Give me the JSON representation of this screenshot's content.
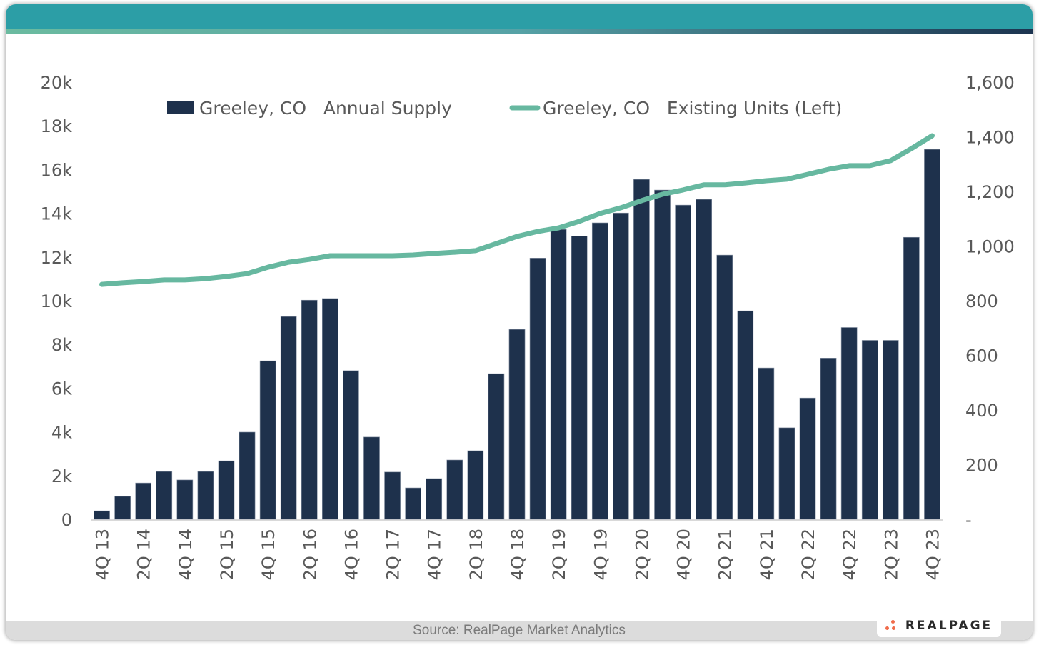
{
  "footer": {
    "source": "Source: RealPage Market Analytics",
    "logo_text": "REALPAGE"
  },
  "colors": {
    "header": "#2c9ea6",
    "bar": "#1e314c",
    "line": "#67b8a0",
    "text": "#595959"
  },
  "chart_data": {
    "type": "bar",
    "title": "",
    "categories": [
      "4Q 13",
      "1Q 14",
      "2Q 14",
      "3Q 14",
      "4Q 14",
      "1Q 15",
      "2Q 15",
      "3Q 15",
      "4Q 15",
      "1Q 16",
      "2Q 16",
      "3Q 16",
      "4Q 16",
      "1Q 17",
      "2Q 17",
      "3Q 17",
      "4Q 17",
      "1Q 18",
      "2Q 18",
      "3Q 18",
      "4Q 18",
      "1Q 19",
      "2Q 19",
      "3Q 19",
      "4Q 19",
      "1Q 20",
      "2Q 20",
      "3Q 20",
      "4Q 20",
      "1Q 21",
      "2Q 21",
      "3Q 21",
      "4Q 21",
      "1Q 22",
      "2Q 22",
      "3Q 22",
      "4Q 22",
      "1Q 23",
      "2Q 23",
      "3Q 23",
      "4Q 23"
    ],
    "tick_labels": [
      "4Q 13",
      "2Q 14",
      "4Q 14",
      "2Q 15",
      "4Q 15",
      "2Q 16",
      "4Q 16",
      "2Q 17",
      "4Q 17",
      "2Q 18",
      "4Q 18",
      "2Q 19",
      "4Q 19",
      "2Q 20",
      "4Q 20",
      "2Q 21",
      "4Q 21",
      "2Q 22",
      "4Q 22",
      "2Q 23",
      "4Q 23"
    ],
    "series": [
      {
        "name": "Greeley, CO   Annual Supply",
        "type": "bar",
        "axis": "right",
        "values": [
          31,
          84,
          133,
          175,
          144,
          175,
          214,
          319,
          580,
          742,
          802,
          808,
          544,
          301,
          173,
          115,
          149,
          217,
          251,
          533,
          695,
          956,
          1061,
          1037,
          1085,
          1121,
          1244,
          1205,
          1150,
          1171,
          967,
          763,
          554,
          335,
          444,
          590,
          702,
          655,
          655,
          1032,
          1354
        ]
      },
      {
        "name": "Greeley, CO   Existing Units (Left)",
        "type": "line",
        "axis": "left",
        "values": [
          10750,
          10820,
          10880,
          10950,
          10950,
          11010,
          11110,
          11240,
          11530,
          11760,
          11890,
          12060,
          12060,
          12060,
          12060,
          12090,
          12160,
          12220,
          12290,
          12610,
          12940,
          13170,
          13330,
          13630,
          13990,
          14250,
          14580,
          14870,
          15070,
          15300,
          15300,
          15390,
          15490,
          15560,
          15780,
          16010,
          16180,
          16180,
          16410,
          16960,
          17550
        ]
      }
    ],
    "left_axis": {
      "ylim": [
        0,
        20000
      ],
      "ticks": [
        "0",
        "2k",
        "4k",
        "6k",
        "8k",
        "10k",
        "12k",
        "14k",
        "16k",
        "18k",
        "20k"
      ]
    },
    "right_axis": {
      "ylim": [
        0,
        1600
      ],
      "ticks": [
        "-",
        "200",
        "400",
        "600",
        "800",
        "1,000",
        "1,200",
        "1,400",
        "1,600"
      ]
    },
    "grid": false,
    "legend": {
      "placement": "top",
      "entries": [
        "Greeley, CO   Annual Supply",
        "Greeley, CO   Existing Units (Left)"
      ]
    }
  }
}
